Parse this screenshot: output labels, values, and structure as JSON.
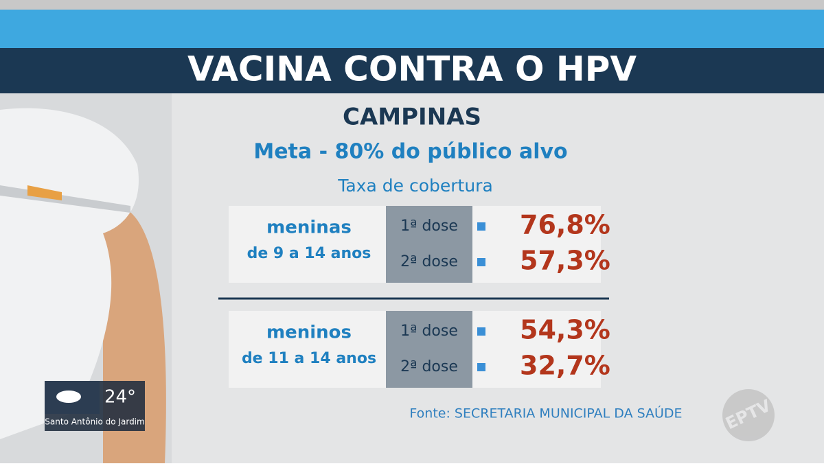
{
  "header": {
    "title": "VACINA CONTRA O HPV"
  },
  "city": "CAMPINAS",
  "goal": "Meta - 80% do público alvo",
  "subtitle": "Taxa de cobertura",
  "groups": [
    {
      "label": "meninas",
      "age": "de 9 a 14 anos",
      "doses": [
        {
          "dose": "1ª dose",
          "rate": "76,8%"
        },
        {
          "dose": "2ª dose",
          "rate": "57,3%"
        }
      ]
    },
    {
      "label": "meninos",
      "age": "de 11 a 14 anos",
      "doses": [
        {
          "dose": "1ª dose",
          "rate": "54,3%"
        },
        {
          "dose": "2ª dose",
          "rate": "32,7%"
        }
      ]
    }
  ],
  "source": "Fonte: SECRETARIA MUNICIPAL DA SAÚDE",
  "weather": {
    "temperature": "24°",
    "location": "Santo Antônio do Jardim"
  },
  "logo": "EPTV"
}
